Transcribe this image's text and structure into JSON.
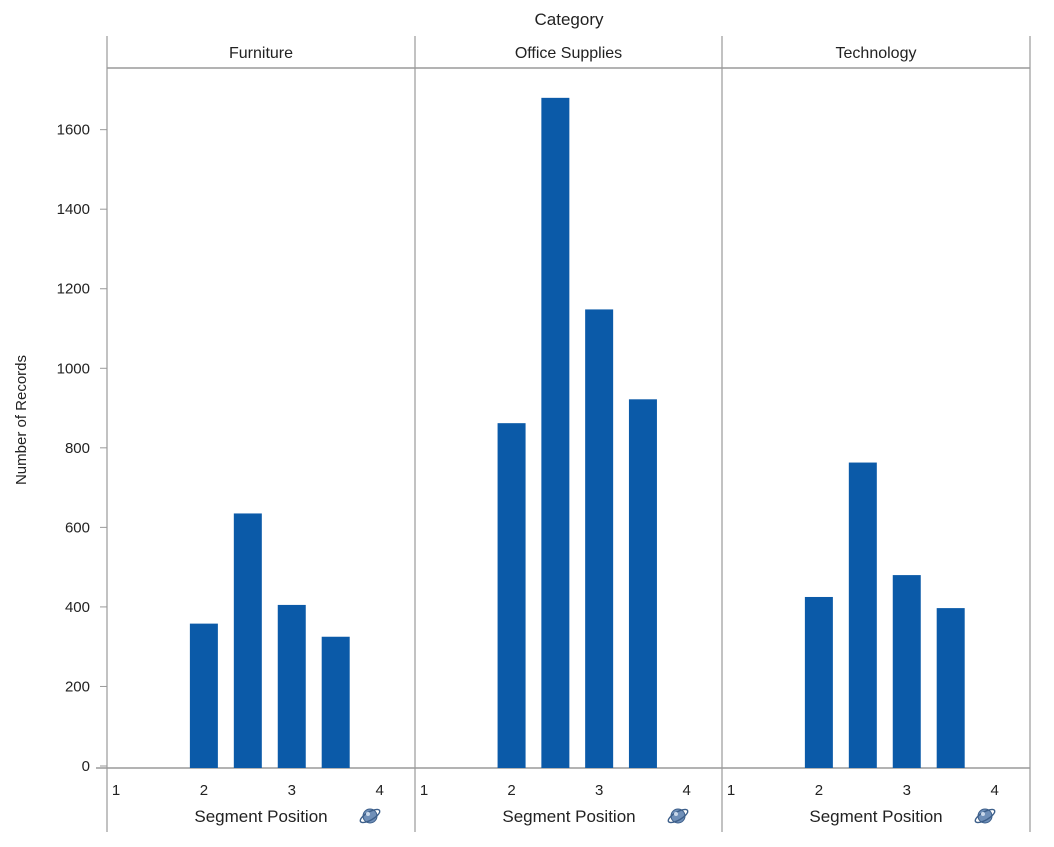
{
  "chart_data": {
    "type": "bar",
    "title": "Category",
    "xlabel": "Segment Position",
    "ylabel": "Number of Records",
    "ylim": [
      0,
      1750
    ],
    "yticks": [
      0,
      200,
      400,
      600,
      800,
      1000,
      1200,
      1400,
      1600
    ],
    "xlim": [
      1,
      4.3
    ],
    "xticks": [
      1,
      2,
      3,
      4
    ],
    "grid": false,
    "bar_color": "#0b5aa8",
    "xlabel_icon": "globe-icon",
    "panels": [
      {
        "name": "Furniture",
        "bars": [
          {
            "x": 2.0,
            "value": 358
          },
          {
            "x": 2.5,
            "value": 635
          },
          {
            "x": 3.0,
            "value": 405
          },
          {
            "x": 3.5,
            "value": 325
          }
        ]
      },
      {
        "name": "Office Supplies",
        "bars": [
          {
            "x": 2.0,
            "value": 862
          },
          {
            "x": 2.5,
            "value": 1680
          },
          {
            "x": 3.0,
            "value": 1148
          },
          {
            "x": 3.5,
            "value": 922
          }
        ]
      },
      {
        "name": "Technology",
        "bars": [
          {
            "x": 2.0,
            "value": 425
          },
          {
            "x": 2.5,
            "value": 763
          },
          {
            "x": 3.0,
            "value": 480
          },
          {
            "x": 3.5,
            "value": 397
          }
        ]
      }
    ]
  }
}
